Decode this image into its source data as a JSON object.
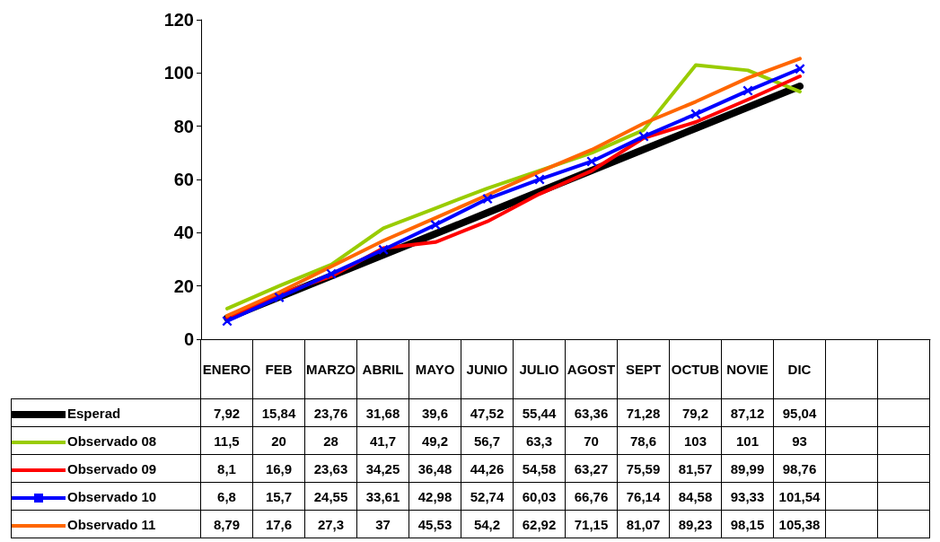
{
  "chart_data": {
    "type": "line",
    "categories": [
      "ENERO",
      "FEB",
      "MARZO",
      "ABRIL",
      "MAYO",
      "JUNIO",
      "JULIO",
      "AGOST",
      "SEPT",
      "OCTUB",
      "NOVIE",
      "DIC",
      null,
      null
    ],
    "ylim": [
      0,
      120
    ],
    "yticks": [
      0,
      20,
      40,
      60,
      80,
      100,
      120
    ],
    "grid": false,
    "legend": "bottom",
    "marker": "none",
    "line_style": "solid",
    "series": [
      {
        "name": "Esperad",
        "color": "#000000",
        "values": [
          7.92,
          15.84,
          23.76,
          31.68,
          39.6,
          47.52,
          55.44,
          63.36,
          71.28,
          79.2,
          87.12,
          95.04,
          null,
          null
        ],
        "value_labels": [
          "7,92",
          "15,84",
          "23,76",
          "31,68",
          "39,6",
          "47,52",
          "55,44",
          "63,36",
          "71,28",
          "79,2",
          "87,12",
          "95,04",
          null,
          null
        ]
      },
      {
        "name": "Observado 08",
        "color": "#99cc00",
        "values": [
          11.5,
          20,
          28,
          41.7,
          49.2,
          56.7,
          63.3,
          70,
          78.6,
          103,
          101,
          93,
          null,
          null
        ],
        "value_labels": [
          "11,5",
          "20",
          "28",
          "41,7",
          "49,2",
          "56,7",
          "63,3",
          "70",
          "78,6",
          "103",
          "101",
          "93",
          null,
          null
        ]
      },
      {
        "name": "Observado 09",
        "color": "#ff0000",
        "values": [
          8.1,
          16.9,
          23.63,
          34.25,
          36.48,
          44.26,
          54.58,
          63.27,
          75.59,
          81.57,
          89.99,
          98.76,
          null,
          null
        ],
        "value_labels": [
          "8,1",
          "16,9",
          "23,63",
          "34,25",
          "36,48",
          "44,26",
          "54,58",
          "63,27",
          "75,59",
          "81,57",
          "89,99",
          "98,76",
          null,
          null
        ]
      },
      {
        "name": "Observado 10",
        "color": "#0000ff",
        "marker": "cross",
        "values": [
          6.8,
          15.7,
          24.55,
          33.61,
          42.98,
          52.74,
          60.03,
          66.76,
          76.14,
          84.58,
          93.33,
          101.54,
          null,
          null
        ],
        "value_labels": [
          "6,8",
          "15,7",
          "24,55",
          "33,61",
          "42,98",
          "52,74",
          "60,03",
          "66,76",
          "76,14",
          "84,58",
          "93,33",
          "101,54",
          null,
          null
        ]
      },
      {
        "name": "Observado 11",
        "color": "#ff6600",
        "values": [
          8.79,
          17.6,
          27.3,
          37,
          45.53,
          54.2,
          62.92,
          71.15,
          81.07,
          89.23,
          98.15,
          105.38,
          null,
          null
        ],
        "value_labels": [
          "8,79",
          "17,6",
          "27,3",
          "37",
          "45,53",
          "54,2",
          "62,92",
          "71,15",
          "81,07",
          "89,23",
          "98,15",
          "105,38",
          null,
          null
        ]
      }
    ]
  }
}
